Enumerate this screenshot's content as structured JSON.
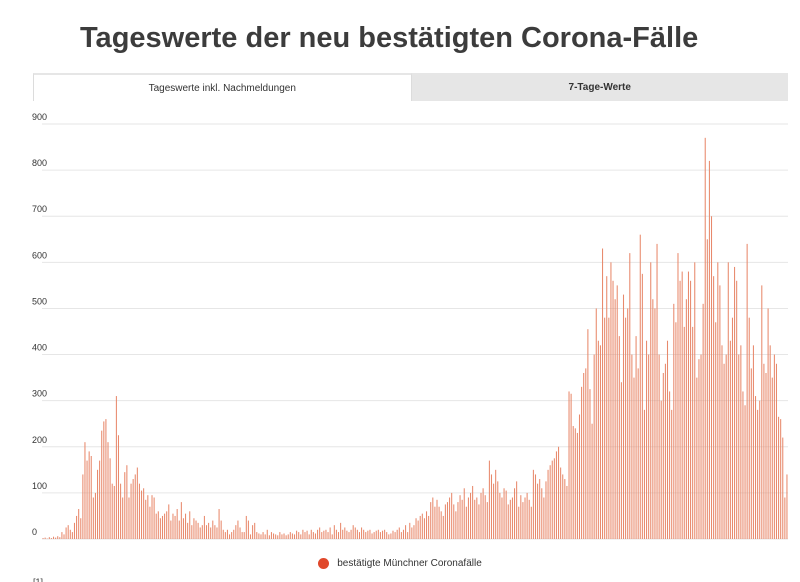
{
  "page": {
    "title": "Tageswerte der neu bestätigten Corona-Fälle",
    "tabs": [
      {
        "label": "Tageswerte inkl. Nachmeldungen",
        "active": true
      },
      {
        "label": "7-Tage-Werte",
        "active": false
      }
    ],
    "footnote": "[1]"
  },
  "colors": {
    "bar": "#e8896c",
    "legend_marker": "#e0482b",
    "grid": "#e6e6e6"
  },
  "chart_data": {
    "type": "bar",
    "title": "Tageswerte der neu bestätigten Corona-Fälle",
    "xlabel": "",
    "ylabel": "",
    "ylim": [
      0,
      900
    ],
    "yticks": [
      0,
      100,
      200,
      300,
      400,
      500,
      600,
      700,
      800,
      900
    ],
    "grid": true,
    "legend_position": "bottom",
    "series": [
      {
        "name": "bestätigte Münchner Coronafälle",
        "values": [
          2,
          3,
          1,
          4,
          2,
          5,
          3,
          6,
          4,
          15,
          10,
          25,
          30,
          20,
          15,
          35,
          50,
          65,
          45,
          140,
          210,
          170,
          190,
          180,
          90,
          100,
          150,
          170,
          235,
          255,
          260,
          210,
          175,
          120,
          115,
          310,
          225,
          120,
          90,
          145,
          160,
          90,
          120,
          130,
          140,
          155,
          120,
          105,
          110,
          85,
          95,
          70,
          95,
          90,
          55,
          60,
          45,
          50,
          55,
          60,
          75,
          40,
          55,
          50,
          65,
          40,
          80,
          45,
          55,
          35,
          60,
          30,
          45,
          40,
          35,
          25,
          30,
          50,
          30,
          35,
          25,
          40,
          30,
          25,
          65,
          40,
          20,
          15,
          20,
          10,
          15,
          20,
          30,
          40,
          25,
          15,
          15,
          50,
          40,
          10,
          30,
          35,
          15,
          12,
          10,
          15,
          10,
          20,
          8,
          15,
          12,
          10,
          8,
          15,
          10,
          12,
          8,
          10,
          15,
          12,
          10,
          18,
          15,
          10,
          20,
          15,
          18,
          10,
          20,
          15,
          12,
          20,
          25,
          15,
          18,
          20,
          15,
          25,
          10,
          30,
          20,
          15,
          35,
          20,
          25,
          18,
          15,
          20,
          30,
          25,
          20,
          15,
          25,
          20,
          15,
          18,
          20,
          12,
          15,
          18,
          20,
          15,
          18,
          20,
          15,
          10,
          12,
          18,
          15,
          20,
          25,
          15,
          20,
          30,
          15,
          35,
          25,
          30,
          45,
          40,
          50,
          55,
          45,
          60,
          50,
          80,
          90,
          70,
          85,
          70,
          60,
          50,
          75,
          80,
          90,
          100,
          75,
          60,
          80,
          95,
          85,
          110,
          70,
          90,
          100,
          115,
          85,
          90,
          75,
          100,
          110,
          95,
          80,
          170,
          140,
          120,
          150,
          125,
          100,
          90,
          110,
          105,
          75,
          85,
          90,
          110,
          125,
          70,
          95,
          80,
          90,
          100,
          85,
          70,
          150,
          140,
          120,
          130,
          110,
          90,
          125,
          150,
          160,
          170,
          175,
          190,
          200,
          155,
          140,
          130,
          115,
          320,
          315,
          245,
          240,
          230,
          270,
          330,
          360,
          370,
          455,
          325,
          250,
          400,
          500,
          430,
          420,
          630,
          480,
          570,
          480,
          600,
          560,
          520,
          550,
          440,
          340,
          530,
          480,
          500,
          620,
          400,
          350,
          440,
          370,
          660,
          575,
          280,
          430,
          400,
          600,
          520,
          500,
          640,
          400,
          300,
          360,
          380,
          430,
          320,
          280,
          510,
          470,
          620,
          560,
          580,
          460,
          520,
          580,
          560,
          460,
          600,
          350,
          390,
          400,
          510,
          870,
          650,
          820,
          700,
          570,
          470,
          600,
          550,
          420,
          380,
          400,
          600,
          430,
          480,
          590,
          560,
          400,
          420,
          320,
          290,
          640,
          480,
          370,
          420,
          310,
          280,
          300,
          550,
          380,
          360,
          500,
          420,
          350,
          400,
          380,
          265,
          260,
          220,
          90,
          140
        ]
      }
    ]
  }
}
